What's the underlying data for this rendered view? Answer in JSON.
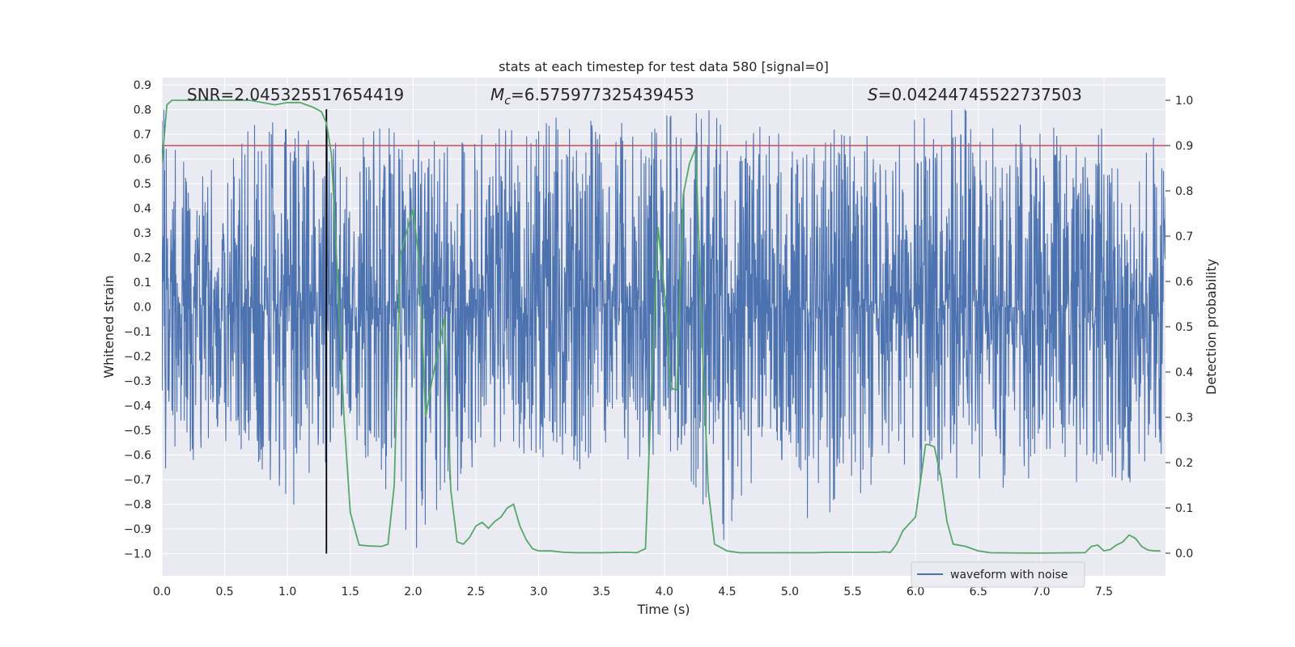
{
  "chart_data": {
    "type": "line",
    "title": "stats at each timestep for test data 580 [signal=0]",
    "xlabel": "Time (s)",
    "ylabel": "Whitened strain",
    "y2label": "Detection probability",
    "xlim": [
      0.0,
      7.99
    ],
    "ylim": [
      -1.09,
      0.93
    ],
    "y2lim": [
      -0.05,
      1.05
    ],
    "x_ticks": [
      0.0,
      0.5,
      1.0,
      1.5,
      2.0,
      2.5,
      3.0,
      3.5,
      4.0,
      4.5,
      5.0,
      5.5,
      6.0,
      6.5,
      7.0,
      7.5
    ],
    "x_tick_labels": [
      "0.0",
      "0.5",
      "1.0",
      "1.5",
      "2.0",
      "2.5",
      "3.0",
      "3.5",
      "4.0",
      "4.5",
      "5.0",
      "5.5",
      "6.0",
      "6.5",
      "7.0",
      "7.5"
    ],
    "y_ticks": [
      0.9,
      0.8,
      0.7,
      0.6,
      0.5,
      0.4,
      0.3,
      0.2,
      0.1,
      0.0,
      -0.1,
      -0.2,
      -0.3,
      -0.4,
      -0.5,
      -0.6,
      -0.7,
      -0.8,
      -0.9,
      -1.0
    ],
    "y_tick_labels": [
      "0.9",
      "0.8",
      "0.7",
      "0.6",
      "0.5",
      "0.4",
      "0.3",
      "0.2",
      "0.1",
      "0.0",
      "−0.1",
      "−0.2",
      "−0.3",
      "−0.4",
      "−0.5",
      "−0.6",
      "−0.7",
      "−0.8",
      "−0.9",
      "−1.0"
    ],
    "y2_ticks": [
      1.0,
      0.9,
      0.8,
      0.7,
      0.6,
      0.5,
      0.4,
      0.3,
      0.2,
      0.1,
      0.0
    ],
    "y2_tick_labels": [
      "1.0",
      "0.9",
      "0.8",
      "0.7",
      "0.6",
      "0.5",
      "0.4",
      "0.3",
      "0.2",
      "0.1",
      "0.0"
    ],
    "grid": true,
    "annotations": {
      "snr": "SNR=2.045325517654419",
      "mc_symbol": "M",
      "mc_subscript": "c",
      "mc_value": "=6.575977325439453",
      "s_symbol": "S",
      "s_value": "=0.04244745522737503"
    },
    "threshold": {
      "axis": "right",
      "value": 0.9,
      "color": "#c44e52"
    },
    "marker_line": {
      "x": 1.31,
      "color": "#000000"
    },
    "series": [
      {
        "name": "waveform with noise",
        "axis": "left",
        "color": "#4c72b0",
        "style": "dense-noise",
        "envelope": [
          [
            0.0,
            0.84,
            -0.49
          ],
          [
            0.25,
            0.72,
            -0.66
          ],
          [
            0.5,
            0.62,
            -0.55
          ],
          [
            0.75,
            0.78,
            -0.62
          ],
          [
            1.0,
            0.72,
            -0.84
          ],
          [
            1.25,
            0.73,
            -0.67
          ],
          [
            1.5,
            0.68,
            -0.55
          ],
          [
            1.75,
            0.74,
            -0.72
          ],
          [
            2.0,
            0.7,
            -1.0
          ],
          [
            2.25,
            0.68,
            -0.86
          ],
          [
            2.5,
            0.72,
            -0.63
          ],
          [
            2.75,
            0.74,
            -0.72
          ],
          [
            3.0,
            0.76,
            -0.62
          ],
          [
            3.25,
            0.78,
            -0.68
          ],
          [
            3.5,
            0.75,
            -0.65
          ],
          [
            3.75,
            0.75,
            -0.7
          ],
          [
            4.0,
            0.77,
            -0.65
          ],
          [
            4.2,
            0.85,
            -0.72
          ],
          [
            4.5,
            0.8,
            -0.97
          ],
          [
            4.75,
            0.74,
            -0.68
          ],
          [
            5.0,
            0.7,
            -0.66
          ],
          [
            5.2,
            0.76,
            -0.95
          ],
          [
            5.5,
            0.74,
            -0.8
          ],
          [
            5.75,
            0.76,
            -0.75
          ],
          [
            6.0,
            0.76,
            -0.75
          ],
          [
            6.25,
            0.8,
            -0.7
          ],
          [
            6.5,
            0.84,
            -0.78
          ],
          [
            6.75,
            0.76,
            -0.74
          ],
          [
            7.0,
            0.74,
            -0.72
          ],
          [
            7.25,
            0.72,
            -0.72
          ],
          [
            7.5,
            0.73,
            -0.68
          ],
          [
            7.75,
            0.72,
            -0.73
          ],
          [
            7.99,
            0.7,
            -0.6
          ]
        ]
      },
      {
        "name": "",
        "axis": "right",
        "color": "#55a868",
        "x": [
          0.0,
          0.04,
          0.08,
          0.15,
          0.3,
          0.5,
          0.7,
          0.8,
          0.9,
          1.0,
          1.1,
          1.2,
          1.27,
          1.31,
          1.35,
          1.4,
          1.45,
          1.5,
          1.57,
          1.65,
          1.75,
          1.8,
          1.85,
          1.9,
          1.95,
          2.0,
          2.05,
          2.1,
          2.15,
          2.2,
          2.25,
          2.3,
          2.35,
          2.4,
          2.45,
          2.5,
          2.55,
          2.6,
          2.65,
          2.7,
          2.75,
          2.8,
          2.85,
          2.9,
          2.95,
          3.0,
          3.05,
          3.1,
          3.2,
          3.3,
          3.5,
          3.7,
          3.78,
          3.85,
          3.9,
          3.95,
          4.0,
          4.05,
          4.1,
          4.15,
          4.2,
          4.25,
          4.3,
          4.35,
          4.4,
          4.5,
          4.6,
          4.8,
          5.0,
          5.2,
          5.3,
          5.5,
          5.7,
          5.75,
          5.8,
          5.85,
          5.9,
          5.95,
          6.0,
          6.05,
          6.08,
          6.1,
          6.15,
          6.2,
          6.25,
          6.3,
          6.4,
          6.5,
          6.6,
          6.8,
          7.0,
          7.2,
          7.3,
          7.35,
          7.4,
          7.45,
          7.5,
          7.55,
          7.6,
          7.65,
          7.7,
          7.75,
          7.8,
          7.85,
          7.9,
          7.95
        ],
        "y": [
          0.86,
          0.99,
          1.0,
          1.0,
          1.0,
          1.0,
          1.0,
          0.995,
          0.99,
          0.995,
          0.995,
          0.985,
          0.975,
          0.95,
          0.88,
          0.6,
          0.3,
          0.09,
          0.018,
          0.016,
          0.015,
          0.02,
          0.15,
          0.66,
          0.71,
          0.76,
          0.64,
          0.3,
          0.38,
          0.45,
          0.52,
          0.14,
          0.025,
          0.02,
          0.035,
          0.06,
          0.068,
          0.055,
          0.07,
          0.08,
          0.1,
          0.108,
          0.06,
          0.03,
          0.01,
          0.005,
          0.005,
          0.005,
          0.002,
          0.001,
          0.001,
          0.002,
          0.001,
          0.01,
          0.38,
          0.72,
          0.58,
          0.365,
          0.36,
          0.79,
          0.86,
          0.895,
          0.48,
          0.14,
          0.02,
          0.005,
          0.001,
          0.001,
          0.001,
          0.001,
          0.002,
          0.002,
          0.002,
          0.003,
          0.002,
          0.02,
          0.05,
          0.065,
          0.08,
          0.18,
          0.24,
          0.24,
          0.235,
          0.17,
          0.07,
          0.02,
          0.015,
          0.005,
          0.001,
          0.0005,
          0.0002,
          0.0008,
          0.001,
          0.0012,
          0.015,
          0.018,
          0.005,
          0.008,
          0.018,
          0.025,
          0.04,
          0.033,
          0.015,
          0.007,
          0.005,
          0.005
        ]
      }
    ],
    "legend": {
      "entries": [
        "waveform with noise"
      ],
      "placement": "lower-right"
    }
  }
}
